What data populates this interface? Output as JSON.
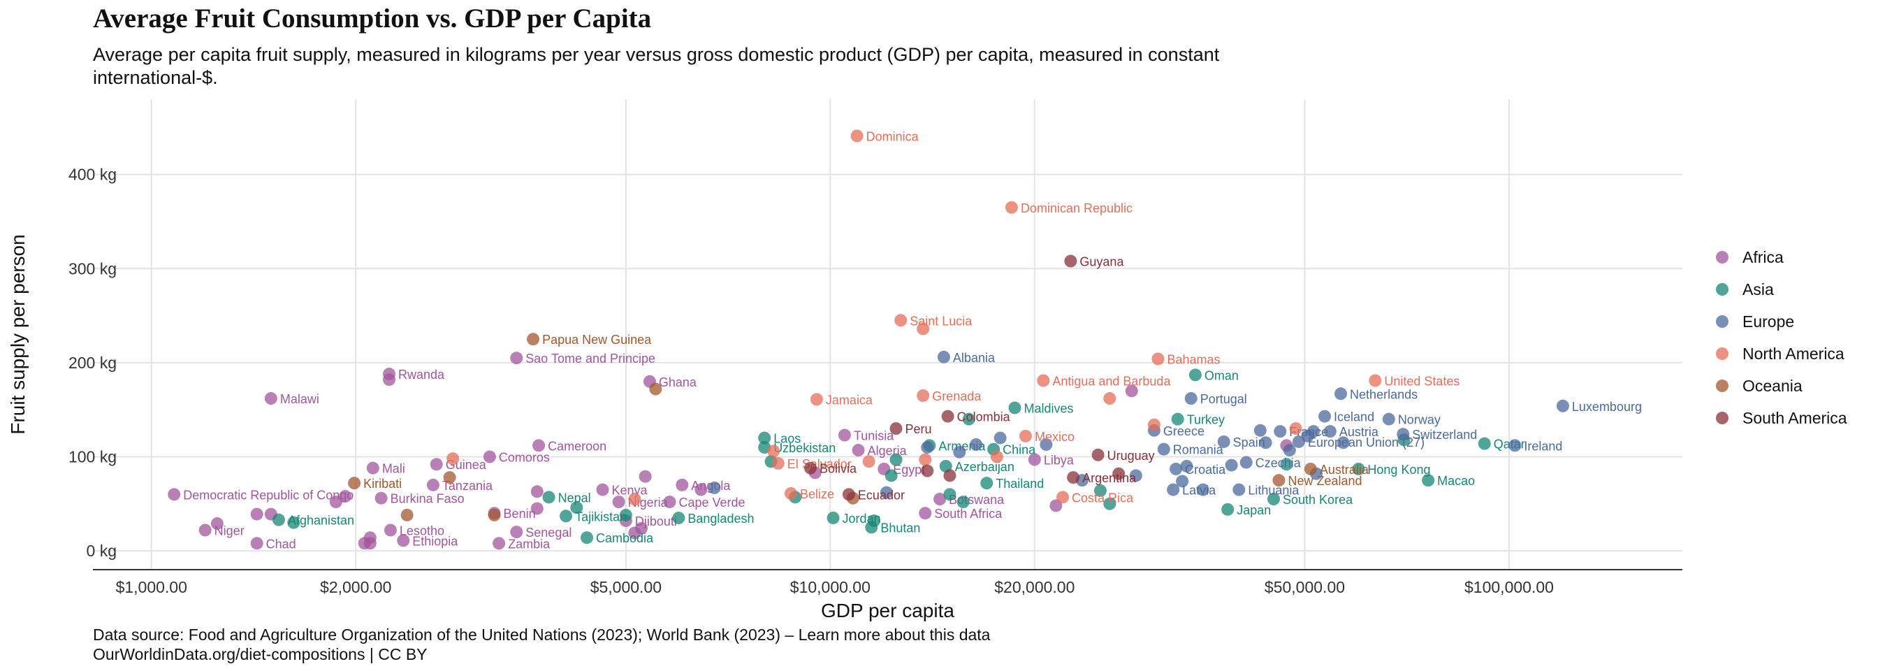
{
  "title": "Average Fruit Consumption vs. GDP per Capita",
  "subtitle": "Average per capita fruit supply, measured in kilograms per year versus gross domestic product (GDP) per capita, measured in constant international-$.",
  "source_line1": "Data source: Food and Agriculture Organization of the United Nations (2023); World Bank (2023) – Learn more about this data",
  "source_line2": "OurWorldinData.org/diet-compositions | CC BY",
  "chart_data": {
    "type": "scatter",
    "xlabel": "GDP per capita",
    "ylabel": "Fruit supply per person",
    "xscale": "log",
    "xlim": [
      820,
      180000
    ],
    "ylim": [
      -20,
      480
    ],
    "xticks": [
      1000,
      2000,
      5000,
      10000,
      20000,
      50000,
      100000
    ],
    "xtick_labels": [
      "$1,000.00",
      "$2,000.00",
      "$5,000.00",
      "$10,000.00",
      "$20,000.00",
      "$50,000.00",
      "$100,000.00"
    ],
    "yticks": [
      0,
      100,
      200,
      300,
      400
    ],
    "ytick_labels": [
      "0 kg",
      "100 kg",
      "200 kg",
      "300 kg",
      "400 kg"
    ],
    "grid": true,
    "legend_position": "right",
    "series": [
      {
        "name": "Africa",
        "color": "#a2559c",
        "points": [
          {
            "x": 1080,
            "y": 60,
            "label": "Democratic Republic of Congo"
          },
          {
            "x": 1500,
            "y": 162,
            "label": "Malawi"
          },
          {
            "x": 1200,
            "y": 22,
            "label": "Niger"
          },
          {
            "x": 1250,
            "y": 29
          },
          {
            "x": 1430,
            "y": 8,
            "label": "Chad"
          },
          {
            "x": 1430,
            "y": 39
          },
          {
            "x": 1500,
            "y": 39
          },
          {
            "x": 1870,
            "y": 52
          },
          {
            "x": 1930,
            "y": 58
          },
          {
            "x": 2060,
            "y": 8
          },
          {
            "x": 2100,
            "y": 8
          },
          {
            "x": 2100,
            "y": 14
          },
          {
            "x": 2250,
            "y": 22,
            "label": "Lesotho"
          },
          {
            "x": 2350,
            "y": 11,
            "label": "Ethiopia"
          },
          {
            "x": 2240,
            "y": 188,
            "label": "Rwanda"
          },
          {
            "x": 2240,
            "y": 182
          },
          {
            "x": 2120,
            "y": 88,
            "label": "Mali"
          },
          {
            "x": 2180,
            "y": 56,
            "label": "Burkina Faso"
          },
          {
            "x": 2600,
            "y": 70,
            "label": "Tanzania"
          },
          {
            "x": 2630,
            "y": 92,
            "label": "Guinea"
          },
          {
            "x": 3150,
            "y": 100,
            "label": "Comoros"
          },
          {
            "x": 3250,
            "y": 8,
            "label": "Zambia"
          },
          {
            "x": 3450,
            "y": 20,
            "label": "Senegal"
          },
          {
            "x": 3200,
            "y": 40,
            "label": "Benin"
          },
          {
            "x": 3450,
            "y": 205,
            "label": "Sao Tome and Principe"
          },
          {
            "x": 3720,
            "y": 112,
            "label": "Cameroon"
          },
          {
            "x": 3700,
            "y": 63
          },
          {
            "x": 3700,
            "y": 45
          },
          {
            "x": 4620,
            "y": 65,
            "label": "Kenya"
          },
          {
            "x": 4880,
            "y": 52,
            "label": "Nigeria"
          },
          {
            "x": 5000,
            "y": 32,
            "label": "Djibouti"
          },
          {
            "x": 5150,
            "y": 19
          },
          {
            "x": 5270,
            "y": 24
          },
          {
            "x": 5420,
            "y": 180,
            "label": "Ghana"
          },
          {
            "x": 5340,
            "y": 79
          },
          {
            "x": 5800,
            "y": 52,
            "label": "Cape Verde"
          },
          {
            "x": 6050,
            "y": 70,
            "label": "Angola"
          },
          {
            "x": 6450,
            "y": 65
          },
          {
            "x": 9500,
            "y": 83
          },
          {
            "x": 10500,
            "y": 123,
            "label": "Tunisia"
          },
          {
            "x": 11000,
            "y": 107,
            "label": "Algeria"
          },
          {
            "x": 12000,
            "y": 87,
            "label": "Egypt"
          },
          {
            "x": 13800,
            "y": 40,
            "label": "South Africa"
          },
          {
            "x": 14500,
            "y": 55,
            "label": "Botswana"
          },
          {
            "x": 20000,
            "y": 97,
            "label": "Libya"
          },
          {
            "x": 21500,
            "y": 48
          },
          {
            "x": 27800,
            "y": 170
          },
          {
            "x": 47000,
            "y": 112
          }
        ]
      },
      {
        "name": "Asia",
        "color": "#178676",
        "points": [
          {
            "x": 1540,
            "y": 33,
            "label": "Afghanistan"
          },
          {
            "x": 1620,
            "y": 30
          },
          {
            "x": 3850,
            "y": 57,
            "label": "Nepal"
          },
          {
            "x": 4080,
            "y": 37,
            "label": "Tajikistan"
          },
          {
            "x": 4230,
            "y": 46
          },
          {
            "x": 4380,
            "y": 14,
            "label": "Cambodia"
          },
          {
            "x": 5000,
            "y": 38
          },
          {
            "x": 5980,
            "y": 35,
            "label": "Bangladesh"
          },
          {
            "x": 8000,
            "y": 120,
            "label": "Laos"
          },
          {
            "x": 8000,
            "y": 110,
            "label": "Uzbekistan"
          },
          {
            "x": 8180,
            "y": 95
          },
          {
            "x": 8880,
            "y": 57
          },
          {
            "x": 10100,
            "y": 35,
            "label": "Jordan"
          },
          {
            "x": 11500,
            "y": 25,
            "label": "Bhutan"
          },
          {
            "x": 11600,
            "y": 32
          },
          {
            "x": 12300,
            "y": 80
          },
          {
            "x": 12500,
            "y": 97
          },
          {
            "x": 14000,
            "y": 112,
            "label": "Armenia"
          },
          {
            "x": 14800,
            "y": 90,
            "label": "Azerbaijan"
          },
          {
            "x": 15000,
            "y": 60
          },
          {
            "x": 15700,
            "y": 52
          },
          {
            "x": 16000,
            "y": 140
          },
          {
            "x": 17000,
            "y": 72,
            "label": "Thailand"
          },
          {
            "x": 17400,
            "y": 108,
            "label": "China"
          },
          {
            "x": 18700,
            "y": 152,
            "label": "Maldives"
          },
          {
            "x": 25000,
            "y": 64
          },
          {
            "x": 25800,
            "y": 50
          },
          {
            "x": 32500,
            "y": 140,
            "label": "Turkey"
          },
          {
            "x": 34500,
            "y": 187,
            "label": "Oman"
          },
          {
            "x": 38500,
            "y": 44,
            "label": "Japan"
          },
          {
            "x": 45000,
            "y": 55,
            "label": "South Korea"
          },
          {
            "x": 47000,
            "y": 92
          },
          {
            "x": 60000,
            "y": 87,
            "label": "Hong Kong"
          },
          {
            "x": 70000,
            "y": 118
          },
          {
            "x": 76000,
            "y": 75,
            "label": "Macao"
          },
          {
            "x": 92000,
            "y": 114,
            "label": "Qatar"
          }
        ]
      },
      {
        "name": "Europe",
        "color": "#4c6a9c",
        "points": [
          {
            "x": 6750,
            "y": 67
          },
          {
            "x": 12100,
            "y": 62
          },
          {
            "x": 13900,
            "y": 110
          },
          {
            "x": 14700,
            "y": 206,
            "label": "Albania"
          },
          {
            "x": 15500,
            "y": 105
          },
          {
            "x": 16400,
            "y": 113
          },
          {
            "x": 17800,
            "y": 120
          },
          {
            "x": 20800,
            "y": 113
          },
          {
            "x": 23500,
            "y": 75
          },
          {
            "x": 28200,
            "y": 80
          },
          {
            "x": 30000,
            "y": 128,
            "label": "Greece"
          },
          {
            "x": 31000,
            "y": 108,
            "label": "Romania"
          },
          {
            "x": 32300,
            "y": 87,
            "label": "Croatia"
          },
          {
            "x": 33000,
            "y": 74
          },
          {
            "x": 32000,
            "y": 65,
            "label": "Latvia"
          },
          {
            "x": 33500,
            "y": 90
          },
          {
            "x": 34000,
            "y": 162,
            "label": "Portugal"
          },
          {
            "x": 35400,
            "y": 65
          },
          {
            "x": 38000,
            "y": 116,
            "label": "Spain"
          },
          {
            "x": 39000,
            "y": 91
          },
          {
            "x": 40000,
            "y": 65,
            "label": "Lithuania"
          },
          {
            "x": 41000,
            "y": 94,
            "label": "Czechia"
          },
          {
            "x": 43000,
            "y": 128
          },
          {
            "x": 43800,
            "y": 115
          },
          {
            "x": 46000,
            "y": 127,
            "label": "France"
          },
          {
            "x": 47500,
            "y": 107
          },
          {
            "x": 49000,
            "y": 116,
            "label": "European Union (27)"
          },
          {
            "x": 50500,
            "y": 122
          },
          {
            "x": 51500,
            "y": 127
          },
          {
            "x": 53500,
            "y": 143,
            "label": "Iceland"
          },
          {
            "x": 54500,
            "y": 127,
            "label": "Austria"
          },
          {
            "x": 56500,
            "y": 167,
            "label": "Netherlands"
          },
          {
            "x": 66500,
            "y": 140,
            "label": "Norway"
          },
          {
            "x": 69800,
            "y": 124,
            "label": "Switzerland"
          },
          {
            "x": 102000,
            "y": 112,
            "label": "Ireland"
          },
          {
            "x": 120000,
            "y": 154,
            "label": "Luxembourg"
          },
          {
            "x": 52000,
            "y": 82
          },
          {
            "x": 57000,
            "y": 115
          }
        ]
      },
      {
        "name": "North America",
        "color": "#e56e5a",
        "points": [
          {
            "x": 2780,
            "y": 98
          },
          {
            "x": 5150,
            "y": 55
          },
          {
            "x": 8750,
            "y": 61,
            "label": "Belize"
          },
          {
            "x": 8250,
            "y": 106
          },
          {
            "x": 8380,
            "y": 93,
            "label": "El Salvador"
          },
          {
            "x": 9550,
            "y": 161,
            "label": "Jamaica"
          },
          {
            "x": 10950,
            "y": 441,
            "label": "Dominica"
          },
          {
            "x": 11400,
            "y": 95
          },
          {
            "x": 12700,
            "y": 245,
            "label": "Saint Lucia"
          },
          {
            "x": 13700,
            "y": 236
          },
          {
            "x": 13700,
            "y": 165,
            "label": "Grenada"
          },
          {
            "x": 13800,
            "y": 97
          },
          {
            "x": 17600,
            "y": 100
          },
          {
            "x": 18500,
            "y": 365,
            "label": "Dominican Republic"
          },
          {
            "x": 19400,
            "y": 122,
            "label": "Mexico"
          },
          {
            "x": 20600,
            "y": 181,
            "label": "Antigua and Barbuda"
          },
          {
            "x": 22000,
            "y": 57,
            "label": "Costa Rica"
          },
          {
            "x": 25800,
            "y": 162
          },
          {
            "x": 30400,
            "y": 204,
            "label": "Bahamas"
          },
          {
            "x": 30000,
            "y": 134
          },
          {
            "x": 48500,
            "y": 130
          },
          {
            "x": 63500,
            "y": 181,
            "label": "United States"
          }
        ]
      },
      {
        "name": "Oceania",
        "color": "#a0582f",
        "points": [
          {
            "x": 1990,
            "y": 72,
            "label": "Kiribati"
          },
          {
            "x": 2380,
            "y": 38
          },
          {
            "x": 2750,
            "y": 78
          },
          {
            "x": 3200,
            "y": 38
          },
          {
            "x": 3650,
            "y": 225,
            "label": "Papua New Guinea"
          },
          {
            "x": 5530,
            "y": 172
          },
          {
            "x": 10800,
            "y": 56
          },
          {
            "x": 45800,
            "y": 75,
            "label": "New Zealand"
          },
          {
            "x": 51000,
            "y": 87,
            "label": "Australia"
          }
        ]
      },
      {
        "name": "South America",
        "color": "#883039",
        "points": [
          {
            "x": 9350,
            "y": 88,
            "label": "Bolivia"
          },
          {
            "x": 10650,
            "y": 60,
            "label": "Ecuador"
          },
          {
            "x": 12500,
            "y": 130,
            "label": "Peru"
          },
          {
            "x": 13900,
            "y": 85
          },
          {
            "x": 14900,
            "y": 143,
            "label": "Colombia"
          },
          {
            "x": 15000,
            "y": 80
          },
          {
            "x": 22600,
            "y": 308,
            "label": "Guyana"
          },
          {
            "x": 22800,
            "y": 78,
            "label": "Argentina"
          },
          {
            "x": 24800,
            "y": 102,
            "label": "Uruguay"
          },
          {
            "x": 26600,
            "y": 82
          }
        ]
      }
    ]
  }
}
